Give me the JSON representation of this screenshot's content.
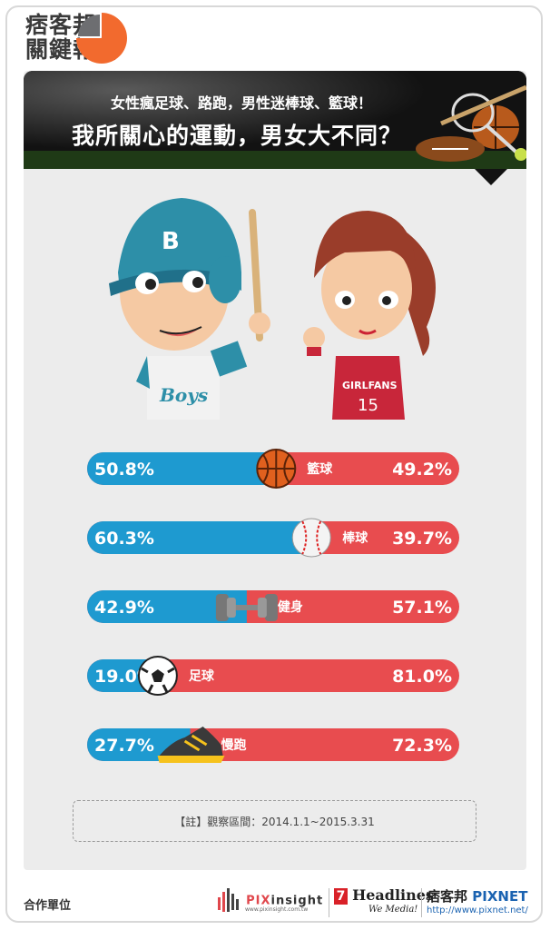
{
  "brand": {
    "logo_line1": "痞客邦",
    "logo_line2": "關鍵報告"
  },
  "banner": {
    "subtitle": "女性瘋足球、路跑，男性迷棒球、籃球！",
    "title": "我所關心的運動，男女大不同？"
  },
  "characters": {
    "boy_cap_letter": "B",
    "boy_shirt": "Boys",
    "girl_shirt": "GIRLFANS",
    "girl_number": "15"
  },
  "chart_data": {
    "type": "bar",
    "stacked": true,
    "orientation": "horizontal",
    "categories": [
      "籃球",
      "棒球",
      "健身",
      "足球",
      "慢跑"
    ],
    "series": [
      {
        "name": "",
        "values": [
          50.8,
          60.3,
          42.9,
          19.0,
          27.7
        ],
        "color": "#1e9ad0"
      },
      {
        "name": "",
        "values": [
          49.2,
          39.7,
          57.1,
          81.0,
          72.3
        ],
        "color": "#e84c4f"
      }
    ],
    "value_labels_left": [
      "50.8%",
      "60.3%",
      "42.9%",
      "19.0%",
      "27.7%"
    ],
    "value_labels_right": [
      "49.2%",
      "39.7%",
      "57.1%",
      "81.0%",
      "72.3%"
    ],
    "icons": [
      "basketball-icon",
      "baseball-icon",
      "dumbbell-icon",
      "soccer-ball-icon",
      "running-shoe-icon"
    ],
    "xlim": [
      0,
      100
    ]
  },
  "note": "【註】觀察區間：2014.1.1~2015.3.31",
  "footer": {
    "label": "合作單位",
    "pix_brand": "PIX",
    "pix_brand2": "insight",
    "pix_url": "www.pixinsight.com.tw",
    "headlines_number": "7",
    "headlines_name": "Headlines",
    "headlines_tag": "We Media!",
    "pixnet_cn": "痞客邦",
    "pixnet_en": "PIXNET",
    "pixnet_url": "http://www.pixnet.net/"
  }
}
